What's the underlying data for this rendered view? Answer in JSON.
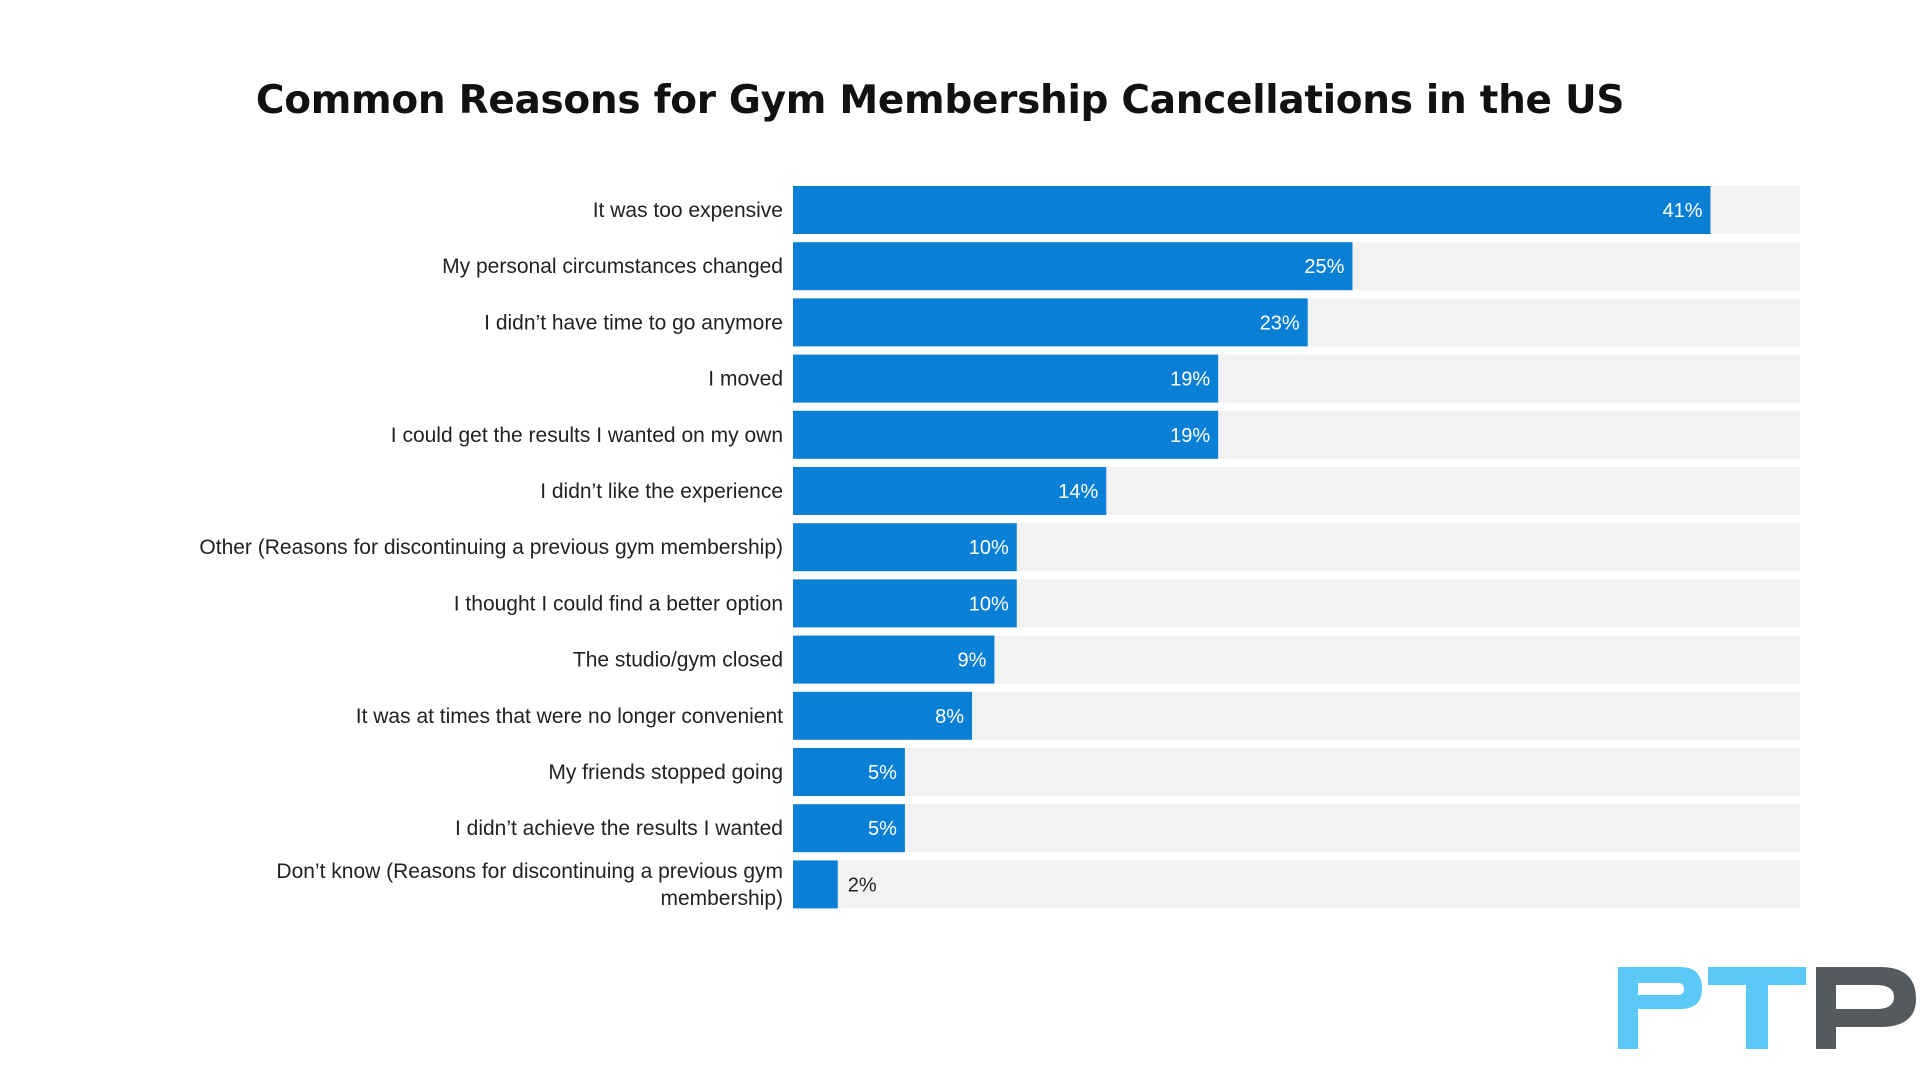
{
  "chart_data": {
    "type": "bar",
    "orientation": "horizontal",
    "title": "Common Reasons for Gym Membership Cancellations in the US",
    "xlabel": "",
    "ylabel": "",
    "xlim": [
      0,
      45
    ],
    "grid": false,
    "categories": [
      "It was too expensive",
      "My personal circumstances changed",
      "I didn’t have time to go anymore",
      "I moved",
      "I could get the results I wanted on my own",
      "I didn’t like the experience",
      "Other (Reasons for discontinuing a previous gym membership)",
      "I thought I could find a better option",
      "The studio/gym closed",
      "It was at times that were no longer convenient",
      "My friends stopped going",
      "I didn’t achieve the results I wanted",
      "Don’t know (Reasons for discontinuing a previous gym membership)"
    ],
    "values": [
      41,
      25,
      23,
      19,
      19,
      14,
      10,
      10,
      9,
      8,
      5,
      5,
      2
    ],
    "value_labels": [
      "41%",
      "25%",
      "23%",
      "19%",
      "19%",
      "14%",
      "10%",
      "10%",
      "9%",
      "8%",
      "5%",
      "5%",
      "2%"
    ]
  },
  "colors": {
    "bar": "#0a7fd6",
    "track": "#f2f2f2",
    "label_inside": "#ffffff",
    "label_outside": "#222222",
    "category_text": "#222222",
    "logo_left": "#5bc8f5",
    "logo_right": "#555a5e"
  },
  "logo": {
    "text": "PTP"
  }
}
